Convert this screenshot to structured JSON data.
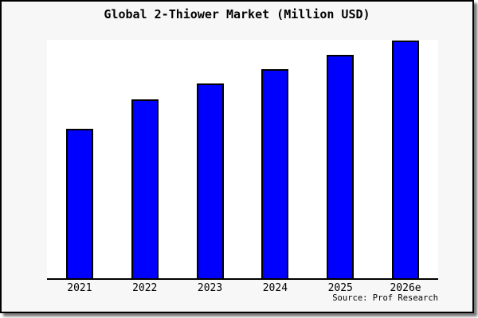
{
  "chart_data": {
    "type": "bar",
    "title": "Global 2-Thiower Market (Million USD)",
    "categories": [
      "2021",
      "2022",
      "2023",
      "2024",
      "2025",
      "2026e"
    ],
    "values": [
      62.8,
      75.0,
      81.7,
      87.7,
      93.8,
      99.8
    ],
    "ylim": [
      0,
      100
    ],
    "xlabel": "",
    "ylabel": "",
    "grid": false,
    "legend": false,
    "y_axis_labels_shown": false,
    "bar_color": "#0000ff",
    "bar_edge_color": "#000000",
    "source_note": "Source: Prof Research"
  },
  "colors": {
    "figure_background": "#f7f7f7",
    "plot_background": "#ffffff",
    "frame_border": "#000000",
    "shadow": "#777777",
    "text": "#000000"
  }
}
